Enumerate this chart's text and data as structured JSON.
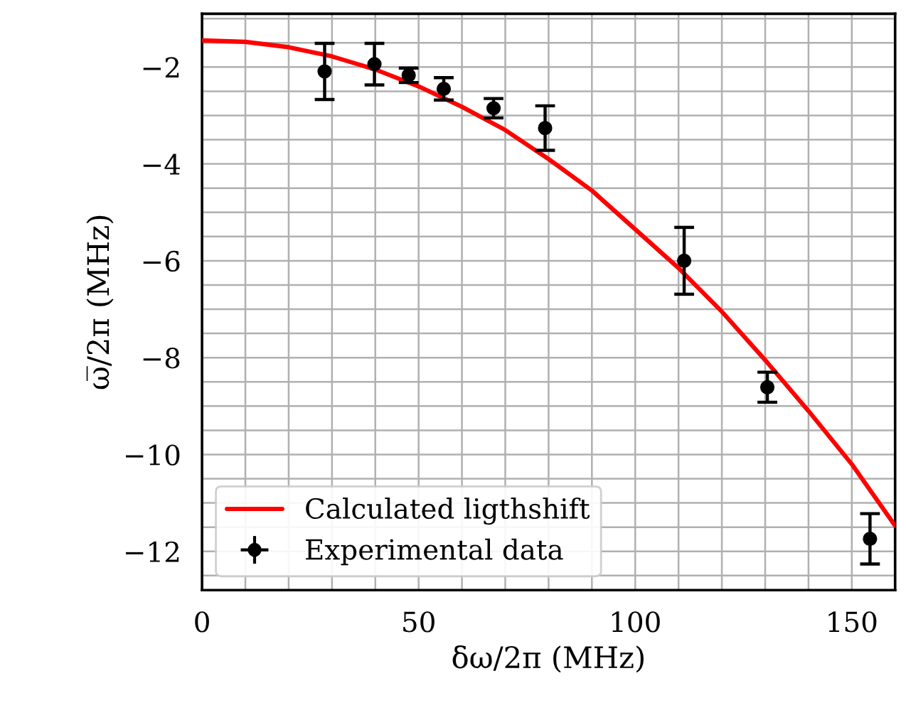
{
  "chart_data": {
    "type": "scatter",
    "xlabel": "δω/2π (MHz)",
    "ylabel": "ω̅/2π (MHz)",
    "xlim": [
      0,
      160
    ],
    "ylim": [
      -12.8,
      -0.9
    ],
    "xticks": [
      0,
      {
        "value": 10,
        "label": null
      },
      {
        "value": 20,
        "label": null
      },
      {
        "value": 30,
        "label": null
      },
      {
        "value": 40,
        "label": null
      },
      50,
      {
        "value": 60,
        "label": null
      },
      {
        "value": 70,
        "label": null
      },
      {
        "value": 80,
        "label": null
      },
      {
        "value": 90,
        "label": null
      },
      100,
      {
        "value": 110,
        "label": null
      },
      {
        "value": 120,
        "label": null
      },
      {
        "value": 130,
        "label": null
      },
      {
        "value": 140,
        "label": null
      },
      150,
      {
        "value": 160,
        "label": null
      }
    ],
    "yticks": [
      {
        "value": -12.5,
        "label": null
      },
      {
        "value": -12,
        "label": "−12"
      },
      {
        "value": -11.5,
        "label": null
      },
      {
        "value": -11,
        "label": null
      },
      {
        "value": -10.5,
        "label": null
      },
      {
        "value": -10,
        "label": "−10"
      },
      {
        "value": -9.5,
        "label": null
      },
      {
        "value": -9,
        "label": null
      },
      {
        "value": -8.5,
        "label": null
      },
      {
        "value": -8,
        "label": "−8"
      },
      {
        "value": -7.5,
        "label": null
      },
      {
        "value": -7,
        "label": null
      },
      {
        "value": -6.5,
        "label": null
      },
      {
        "value": -6,
        "label": "−6"
      },
      {
        "value": -5.5,
        "label": null
      },
      {
        "value": -5,
        "label": null
      },
      {
        "value": -4.5,
        "label": null
      },
      {
        "value": -4,
        "label": "−4"
      },
      {
        "value": -3.5,
        "label": null
      },
      {
        "value": -3,
        "label": null
      },
      {
        "value": -2.5,
        "label": null
      },
      {
        "value": -2,
        "label": "−2"
      },
      {
        "value": -1.5,
        "label": null
      },
      {
        "value": -1,
        "label": null
      }
    ],
    "grid": true,
    "legend": "bottom left",
    "series": [
      {
        "name": "Calculated ligthshift",
        "type": "line",
        "color": "#ff0000",
        "line_style": "solid",
        "marker": "none",
        "x": [
          0,
          10,
          20,
          30,
          40,
          50,
          60,
          70,
          80,
          90,
          100,
          110,
          120,
          130,
          140,
          150,
          160
        ],
        "values": [
          -1.45,
          -1.48,
          -1.59,
          -1.78,
          -2.05,
          -2.4,
          -2.82,
          -3.3,
          -3.9,
          -4.55,
          -5.35,
          -6.15,
          -7.05,
          -8.05,
          -9.1,
          -10.2,
          -11.47
        ]
      },
      {
        "name": "Experimental data",
        "color": "#000000",
        "marker": "circle",
        "x": [
          28.3,
          39.8,
          47.7,
          55.8,
          67.3,
          79.2,
          111.3,
          130.5,
          154.2
        ],
        "values": [
          -2.09,
          -1.94,
          -2.17,
          -2.45,
          -2.85,
          -3.26,
          -6.0,
          -8.61,
          -11.74
        ],
        "errors": [
          0.58,
          0.43,
          0.15,
          0.23,
          0.2,
          0.46,
          0.69,
          0.31,
          0.52
        ]
      }
    ]
  }
}
